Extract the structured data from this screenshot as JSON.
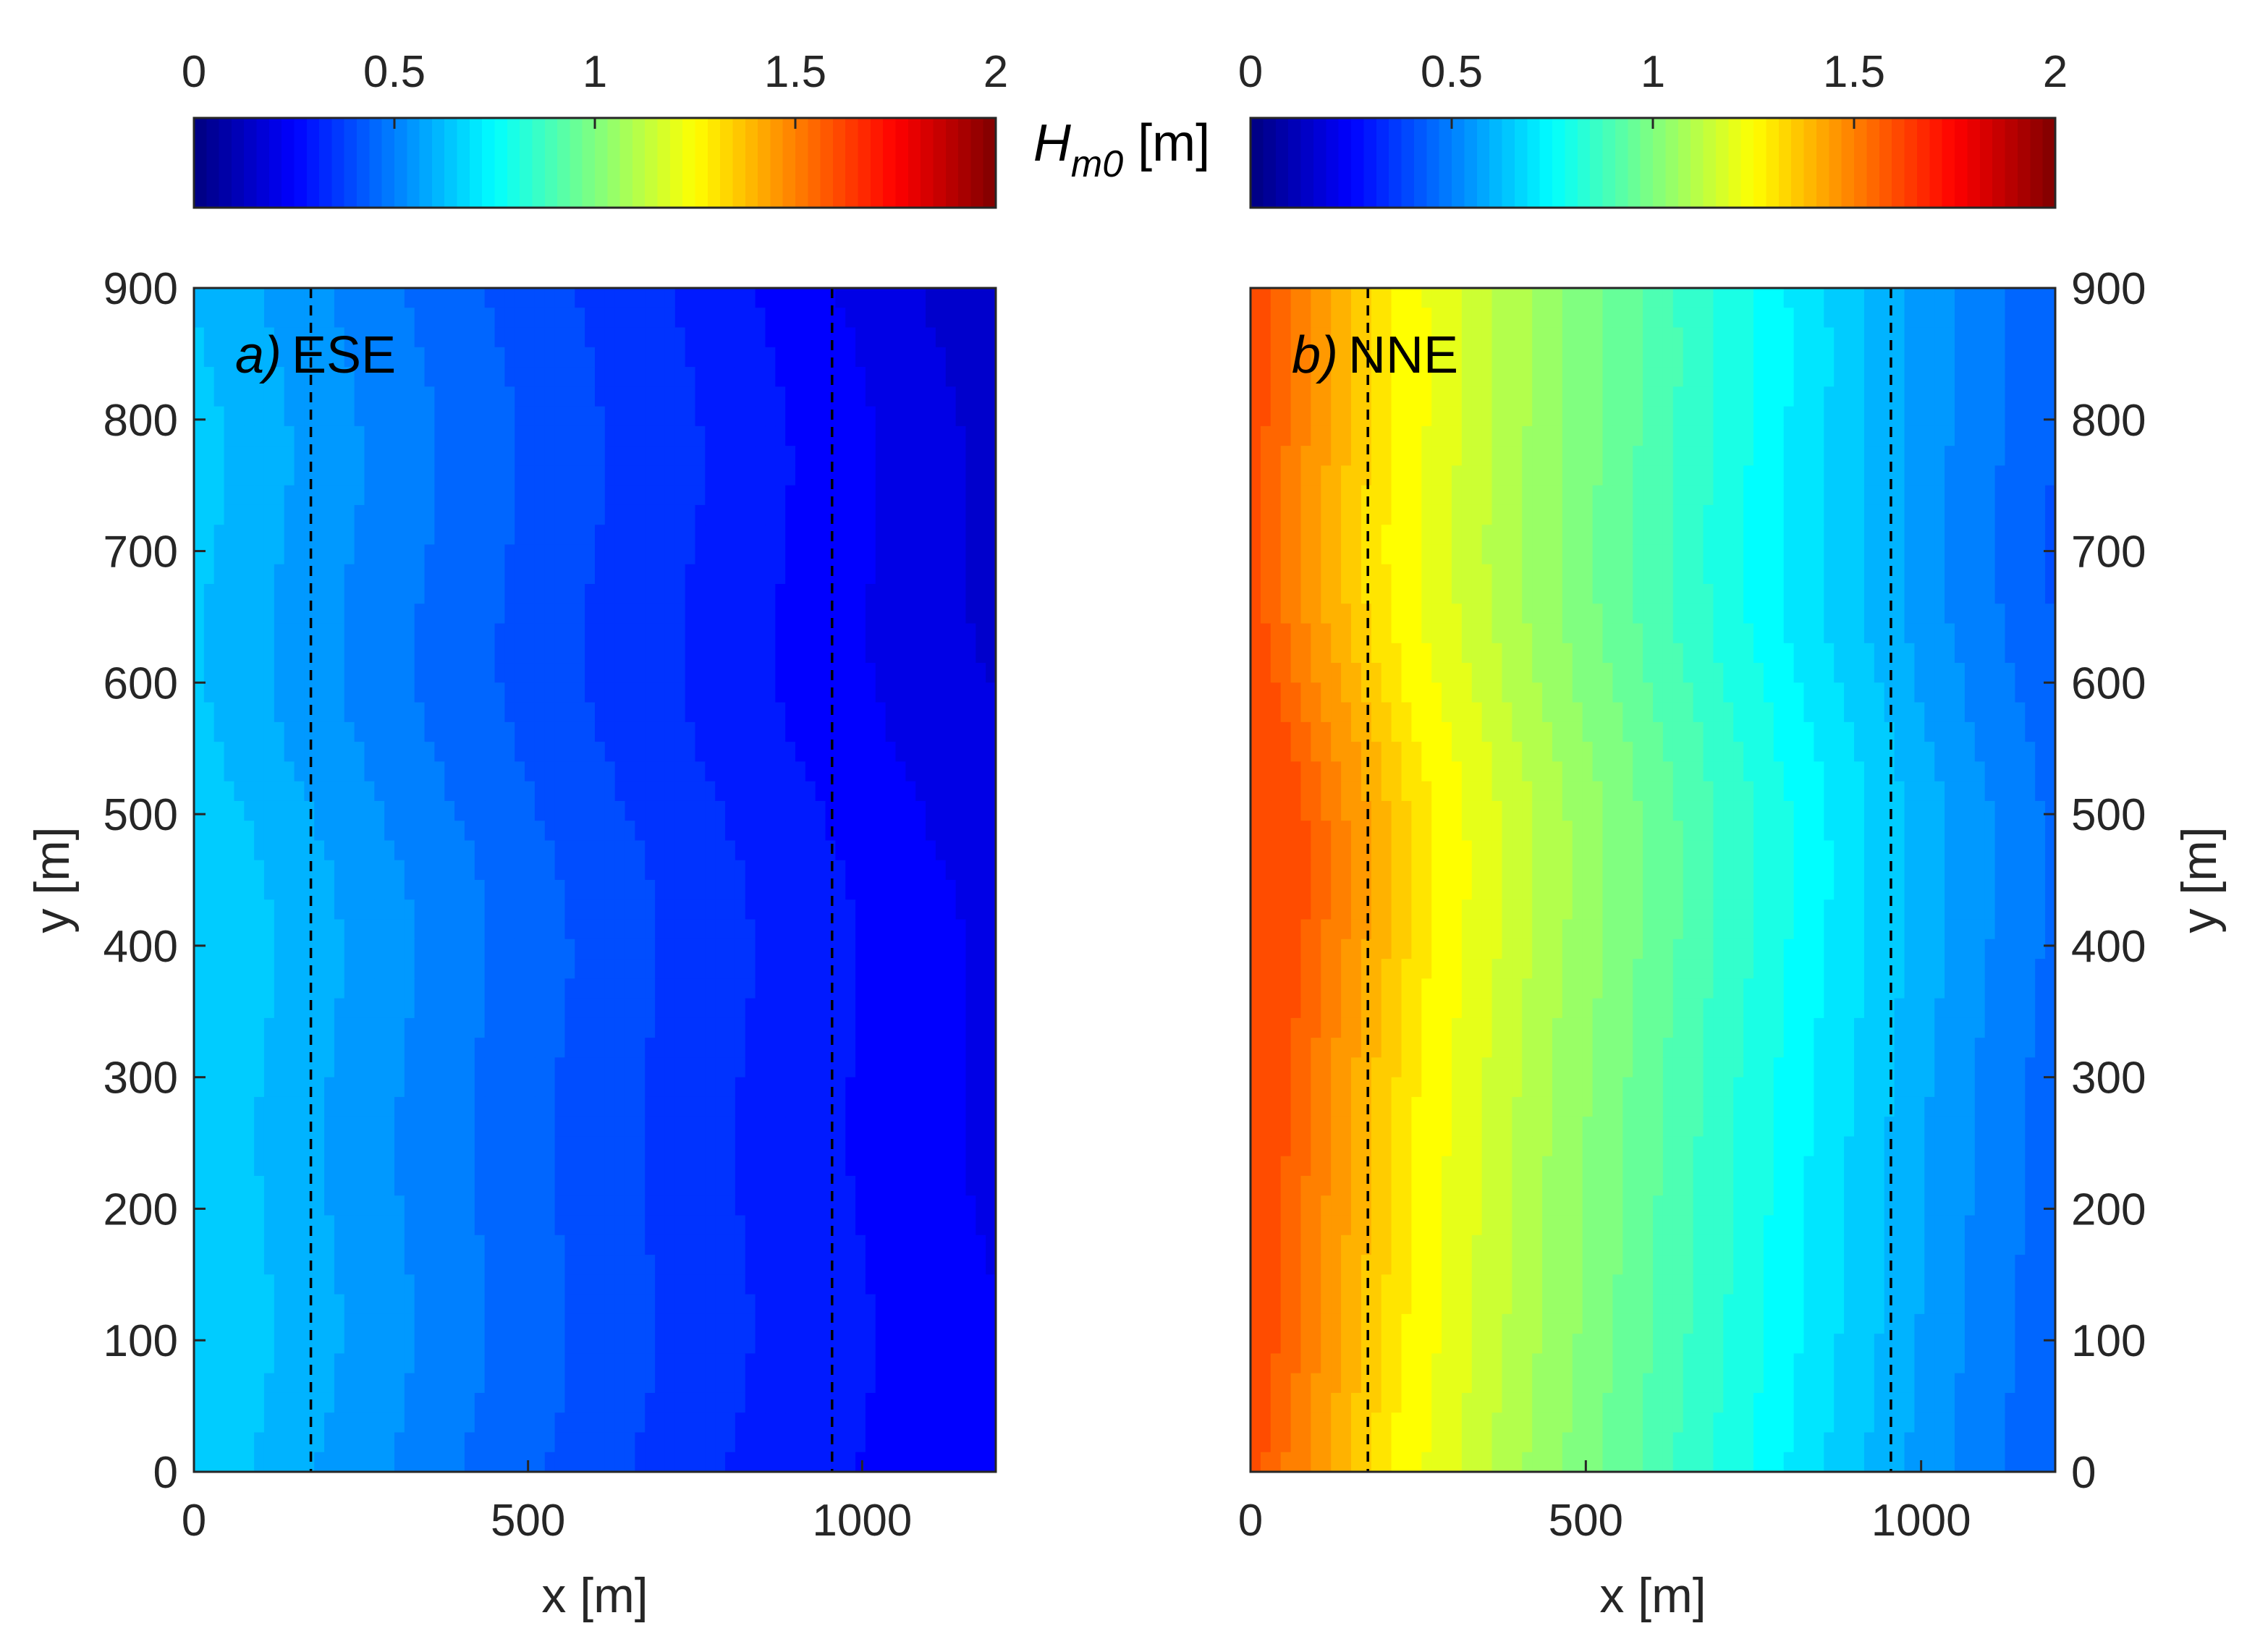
{
  "chart_data": [
    {
      "type": "heatmap",
      "panel": "a",
      "title_italic": "a)",
      "title_text": "ESE",
      "xlabel": "x [m]",
      "ylabel": "y [m]",
      "ylabel_side": "left",
      "xlim": [
        0,
        1200
      ],
      "ylim": [
        0,
        900
      ],
      "xticks": [
        0,
        500,
        1000
      ],
      "yticks": [
        0,
        100,
        200,
        300,
        400,
        500,
        600,
        700,
        800,
        900
      ],
      "dashed_lines_x": [
        175,
        955
      ],
      "colormap": "jet",
      "clim": [
        0,
        2
      ],
      "field_description": "Hm0 decreases from about 0.65 m at x=0 to about 0.2 m at x=1200, contours curved (bulging offshore near y=300)",
      "hm0_profile": {
        "x": [
          0,
          200,
          400,
          600,
          800,
          1000,
          1200
        ],
        "values": [
          0.66,
          0.56,
          0.47,
          0.39,
          0.32,
          0.27,
          0.22
        ]
      }
    },
    {
      "type": "heatmap",
      "panel": "b",
      "title_italic": "b)",
      "title_text": "NNE",
      "xlabel": "x [m]",
      "ylabel": "y [m]",
      "ylabel_side": "right",
      "xlim": [
        0,
        1200
      ],
      "ylim": [
        0,
        900
      ],
      "xticks": [
        0,
        500,
        1000
      ],
      "yticks": [
        0,
        100,
        200,
        300,
        400,
        500,
        600,
        700,
        800,
        900
      ],
      "dashed_lines_x": [
        175,
        955
      ],
      "colormap": "jet",
      "clim": [
        0,
        2
      ],
      "field_description": "Hm0 decreases from about 1.6 m at x=0 to about 0.4 m at x=1200, highest nearshore around y=300-500",
      "hm0_profile": {
        "x": [
          0,
          200,
          400,
          600,
          800,
          1000,
          1200
        ],
        "values": [
          1.6,
          1.28,
          1.08,
          0.9,
          0.72,
          0.55,
          0.42
        ]
      }
    }
  ],
  "colorbars": [
    {
      "ticks": [
        "0",
        "0.5",
        "1",
        "1.5",
        "2"
      ],
      "range": [
        0,
        2
      ]
    },
    {
      "ticks": [
        "0",
        "0.5",
        "1",
        "1.5",
        "2"
      ],
      "range": [
        0,
        2
      ]
    }
  ],
  "colorbar_label": {
    "main": "H",
    "sub": "m0",
    "unit": " [m]"
  }
}
